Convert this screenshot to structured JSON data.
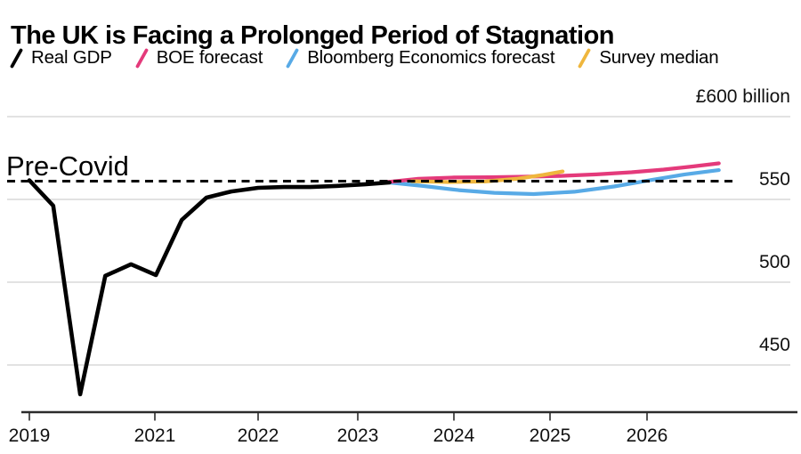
{
  "header": {
    "title": "The UK is Facing a Prolonged Period of Stagnation"
  },
  "legend": {
    "items": [
      {
        "label": "Real GDP",
        "color": "#000000",
        "icon": "slash-icon"
      },
      {
        "label": "BOE forecast",
        "color": "#e43a7b",
        "icon": "slash-icon"
      },
      {
        "label": "Bloomberg Economics forecast",
        "color": "#58aae6",
        "icon": "slash-icon"
      },
      {
        "label": "Survey median",
        "color": "#efb63d",
        "icon": "slash-icon"
      }
    ]
  },
  "chart_data": {
    "type": "line",
    "title": "The UK is Facing a Prolonged Period of Stagnation",
    "unit_label": "£600 billion",
    "grid": true,
    "legend_position": "top",
    "annotation": {
      "label": "Pre-Covid",
      "value": 561
    },
    "x_axis": {
      "ticks": [
        2019,
        2021,
        2022,
        2023,
        2024,
        2025,
        2026
      ],
      "range": [
        2018.9,
        2027.5
      ]
    },
    "y_axis": {
      "range": [
        420,
        610
      ],
      "ticks": [
        {
          "value": 600,
          "label": "£600 billion"
        },
        {
          "value": 550,
          "label": "550"
        },
        {
          "value": 500,
          "label": "500"
        },
        {
          "value": 450,
          "label": "450"
        }
      ]
    },
    "series": [
      {
        "name": "Real GDP",
        "color": "#000000",
        "width": 4.6,
        "points": [
          [
            2019.0,
            561.5
          ],
          [
            2019.38,
            546.2
          ],
          [
            2019.81,
            432.3
          ],
          [
            2020.21,
            503.8
          ],
          [
            2020.62,
            510.8
          ],
          [
            2021.01,
            504.3
          ],
          [
            2021.26,
            537.6
          ],
          [
            2021.5,
            551.1
          ],
          [
            2021.74,
            554.8
          ],
          [
            2022.0,
            557.0
          ],
          [
            2022.26,
            557.5
          ],
          [
            2022.52,
            557.5
          ],
          [
            2022.78,
            558.1
          ],
          [
            2023.07,
            559.1
          ],
          [
            2023.33,
            560.2
          ]
        ]
      },
      {
        "name": "BOE forecast",
        "color": "#e43a7b",
        "width": 4.2,
        "points": [
          [
            2023.31,
            560.5
          ],
          [
            2023.63,
            562.4
          ],
          [
            2024.0,
            563.2
          ],
          [
            2024.37,
            563.4
          ],
          [
            2024.74,
            563.7
          ],
          [
            2025.11,
            564.2
          ],
          [
            2025.48,
            565.1
          ],
          [
            2025.84,
            566.4
          ],
          [
            2026.17,
            568.0
          ],
          [
            2026.47,
            569.9
          ],
          [
            2026.74,
            571.8
          ]
        ]
      },
      {
        "name": "Bloomberg Economics forecast",
        "color": "#58aae6",
        "width": 4.2,
        "points": [
          [
            2023.33,
            560.2
          ],
          [
            2023.68,
            558.1
          ],
          [
            2024.05,
            555.6
          ],
          [
            2024.42,
            554.0
          ],
          [
            2024.83,
            553.2
          ],
          [
            2025.25,
            554.6
          ],
          [
            2025.66,
            557.8
          ],
          [
            2026.03,
            561.6
          ],
          [
            2026.39,
            565.1
          ],
          [
            2026.74,
            567.7
          ]
        ]
      },
      {
        "name": "Survey median",
        "color": "#efb63d",
        "width": 4.2,
        "points": [
          [
            2023.56,
            561.0
          ],
          [
            2023.95,
            560.5
          ],
          [
            2024.32,
            560.8
          ],
          [
            2024.65,
            562.4
          ],
          [
            2024.93,
            564.8
          ],
          [
            2025.13,
            566.9
          ]
        ]
      }
    ]
  }
}
